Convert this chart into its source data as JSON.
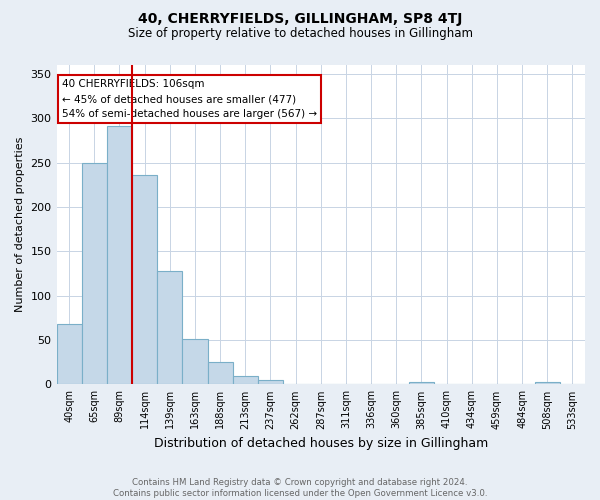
{
  "title": "40, CHERRYFIELDS, GILLINGHAM, SP8 4TJ",
  "subtitle": "Size of property relative to detached houses in Gillingham",
  "xlabel": "Distribution of detached houses by size in Gillingham",
  "ylabel": "Number of detached properties",
  "footnote1": "Contains HM Land Registry data © Crown copyright and database right 2024.",
  "footnote2": "Contains public sector information licensed under the Open Government Licence v3.0.",
  "categories": [
    "40sqm",
    "65sqm",
    "89sqm",
    "114sqm",
    "139sqm",
    "163sqm",
    "188sqm",
    "213sqm",
    "237sqm",
    "262sqm",
    "287sqm",
    "311sqm",
    "336sqm",
    "360sqm",
    "385sqm",
    "410sqm",
    "434sqm",
    "459sqm",
    "484sqm",
    "508sqm",
    "533sqm"
  ],
  "values": [
    68,
    250,
    291,
    236,
    128,
    51,
    25,
    10,
    5,
    0,
    0,
    0,
    0,
    0,
    3,
    0,
    0,
    0,
    0,
    3,
    0
  ],
  "bar_color": "#c5d8e8",
  "bar_edge_color": "#7aafc8",
  "vline_x": 2.5,
  "vline_color": "#cc0000",
  "annotation_text": "40 CHERRYFIELDS: 106sqm\n← 45% of detached houses are smaller (477)\n54% of semi-detached houses are larger (567) →",
  "annotation_box_color": "#ffffff",
  "annotation_box_edge": "#cc0000",
  "ylim": [
    0,
    360
  ],
  "yticks": [
    0,
    50,
    100,
    150,
    200,
    250,
    300,
    350
  ],
  "bg_color": "#e8eef5",
  "plot_bg_color": "#ffffff",
  "grid_color": "#c8d4e4"
}
